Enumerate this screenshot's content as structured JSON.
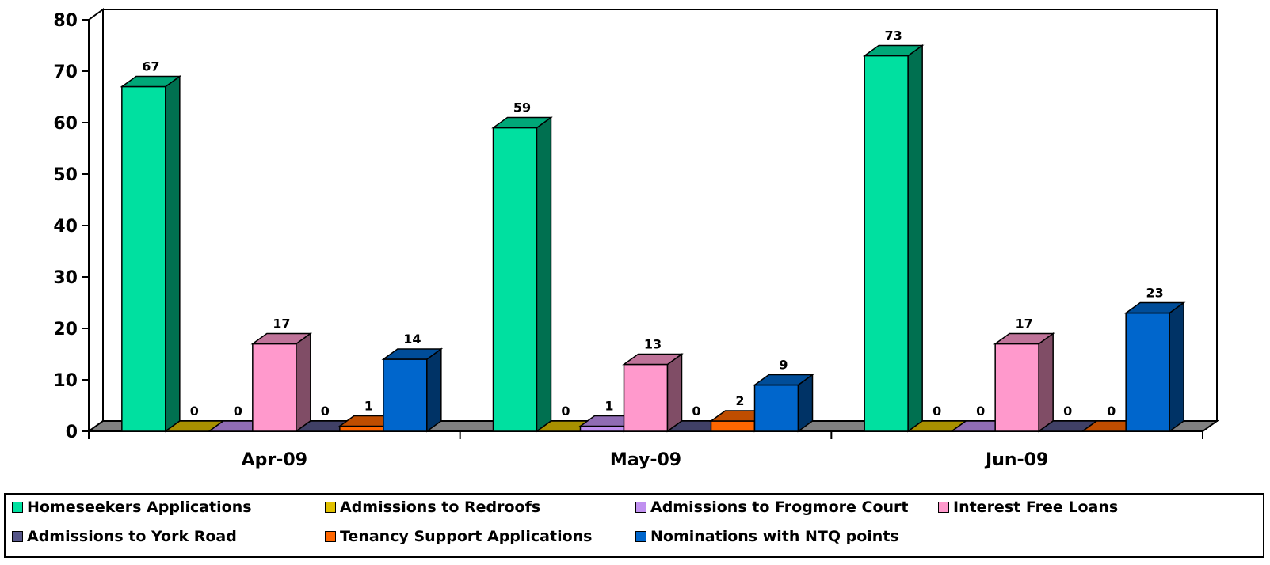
{
  "chart_data": {
    "type": "bar",
    "categories": [
      "Apr-09",
      "May-09",
      "Jun-09"
    ],
    "series": [
      {
        "name": "Homeseekers Applications",
        "values": [
          67,
          59,
          73
        ],
        "color": "#00E0A0"
      },
      {
        "name": "Admissions to Redroofs",
        "values": [
          0,
          0,
          0
        ],
        "color": "#E0C000"
      },
      {
        "name": "Admissions to Frogmore Court",
        "values": [
          0,
          1,
          0
        ],
        "color": "#C090F0"
      },
      {
        "name": "Interest Free Loans",
        "values": [
          17,
          13,
          17
        ],
        "color": "#FF99CC"
      },
      {
        "name": "Admissions to York Road",
        "values": [
          0,
          0,
          0
        ],
        "color": "#555588"
      },
      {
        "name": "Tenancy Support Applications",
        "values": [
          1,
          2,
          0
        ],
        "color": "#FF6600"
      },
      {
        "name": "Nominations with NTQ points",
        "values": [
          14,
          9,
          23
        ],
        "color": "#0066CC"
      }
    ],
    "ylim": [
      0,
      80
    ],
    "yticks": [
      "0",
      "10",
      "20",
      "30",
      "40",
      "50",
      "60",
      "70",
      "80"
    ],
    "grid": false,
    "legend_position": "bottom",
    "three_d": true
  }
}
